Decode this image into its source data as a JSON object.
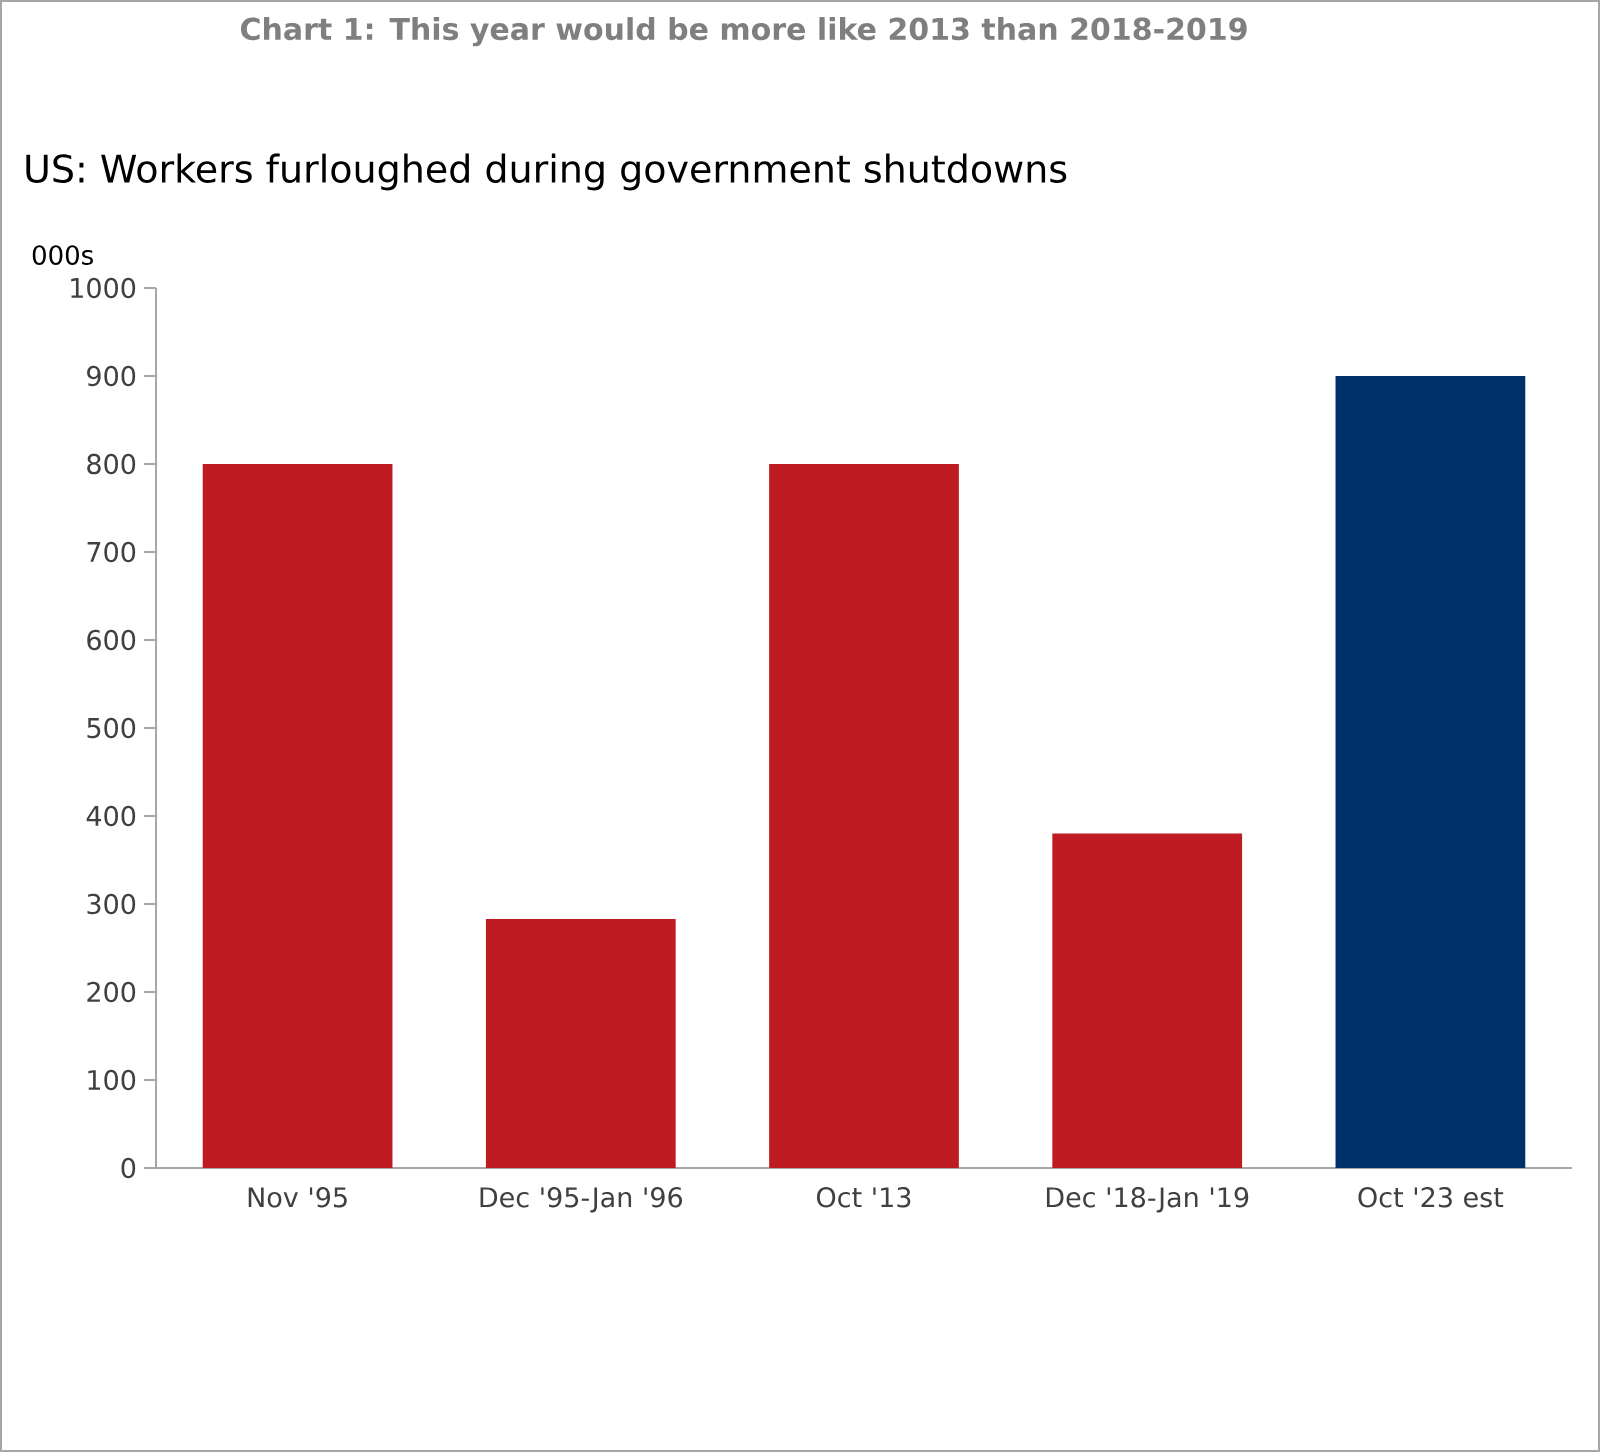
{
  "chart_data": {
    "type": "bar",
    "title": "Chart 1: This year would be more like 2013 than 2018-2019",
    "subtitle": "US: Workers furloughed during government shutdowns",
    "ylabel": "000s",
    "categories": [
      "Nov '95",
      "Dec '95-Jan '96",
      "Oct '13",
      "Dec '18-Jan '19",
      "Oct '23 est"
    ],
    "values": [
      800,
      283,
      800,
      380,
      900
    ],
    "colors": [
      "#be1a22",
      "#be1a22",
      "#be1a22",
      "#be1a22",
      "#003068"
    ],
    "ylim": [
      0,
      1000
    ],
    "yticks": [
      0,
      100,
      200,
      300,
      400,
      500,
      600,
      700,
      800,
      900,
      1000
    ],
    "grid": false
  }
}
